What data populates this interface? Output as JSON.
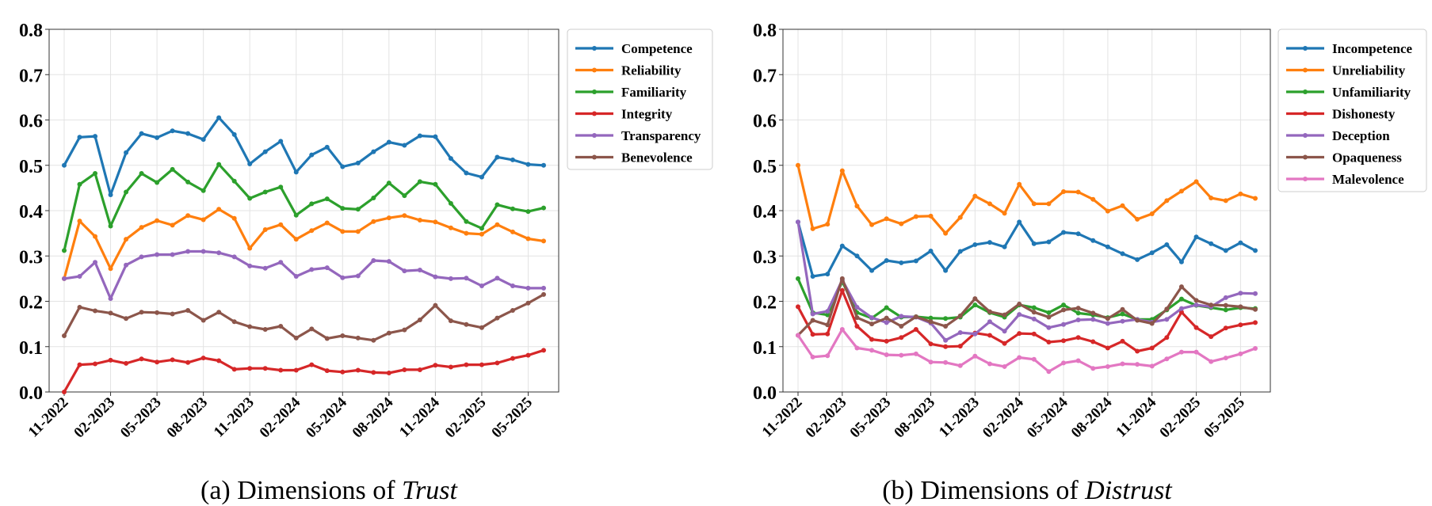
{
  "chart_data": [
    {
      "type": "line",
      "caption_prefix": "(a) Dimensions of ",
      "caption_emph": "Trust",
      "ylim": [
        0,
        0.8
      ],
      "yticks": [
        "0.0",
        "0.1",
        "0.2",
        "0.3",
        "0.4",
        "0.5",
        "0.6",
        "0.7",
        "0.8"
      ],
      "x_ticks": [
        "11-2022",
        "02-2023",
        "05-2023",
        "08-2023",
        "11-2023",
        "02-2024",
        "05-2024",
        "08-2024",
        "11-2024",
        "02-2025",
        "05-2025"
      ],
      "grid": true,
      "legend_position": "outside-right",
      "series": [
        {
          "name": "Competence",
          "color": "#1f77b4",
          "values": [
            0.5,
            0.562,
            0.564,
            0.435,
            0.528,
            0.57,
            0.561,
            0.576,
            0.57,
            0.557,
            0.605,
            0.568,
            0.503,
            0.53,
            0.553,
            0.485,
            0.523,
            0.54,
            0.497,
            0.505,
            0.53,
            0.551,
            0.544,
            0.565,
            0.563,
            0.515,
            0.483,
            0.474,
            0.518,
            0.512,
            0.502,
            0.5
          ]
        },
        {
          "name": "Reliability",
          "color": "#ff7f0e",
          "values": [
            0.25,
            0.377,
            0.343,
            0.272,
            0.337,
            0.363,
            0.378,
            0.368,
            0.389,
            0.38,
            0.403,
            0.383,
            0.317,
            0.358,
            0.369,
            0.337,
            0.356,
            0.373,
            0.354,
            0.354,
            0.376,
            0.384,
            0.389,
            0.379,
            0.375,
            0.362,
            0.35,
            0.348,
            0.369,
            0.353,
            0.338,
            0.333
          ]
        },
        {
          "name": "Familiarity",
          "color": "#2ca02c",
          "values": [
            0.312,
            0.458,
            0.482,
            0.366,
            0.441,
            0.482,
            0.462,
            0.491,
            0.463,
            0.444,
            0.502,
            0.465,
            0.427,
            0.441,
            0.452,
            0.39,
            0.415,
            0.426,
            0.405,
            0.403,
            0.428,
            0.461,
            0.433,
            0.464,
            0.458,
            0.416,
            0.376,
            0.361,
            0.413,
            0.404,
            0.398,
            0.406
          ]
        },
        {
          "name": "Integrity",
          "color": "#d62728",
          "values": [
            0.0,
            0.06,
            0.062,
            0.07,
            0.063,
            0.073,
            0.066,
            0.071,
            0.065,
            0.075,
            0.069,
            0.05,
            0.052,
            0.052,
            0.048,
            0.048,
            0.06,
            0.047,
            0.044,
            0.048,
            0.043,
            0.042,
            0.049,
            0.049,
            0.059,
            0.055,
            0.06,
            0.06,
            0.064,
            0.074,
            0.081,
            0.092
          ]
        },
        {
          "name": "Transparency",
          "color": "#9467bd",
          "values": [
            0.25,
            0.255,
            0.286,
            0.206,
            0.28,
            0.298,
            0.303,
            0.303,
            0.31,
            0.31,
            0.307,
            0.298,
            0.278,
            0.273,
            0.286,
            0.255,
            0.27,
            0.274,
            0.252,
            0.256,
            0.29,
            0.288,
            0.267,
            0.269,
            0.254,
            0.25,
            0.251,
            0.234,
            0.251,
            0.234,
            0.229,
            0.229
          ]
        },
        {
          "name": "Benevolence",
          "color": "#8c564b",
          "values": [
            0.124,
            0.187,
            0.179,
            0.174,
            0.162,
            0.176,
            0.175,
            0.172,
            0.18,
            0.158,
            0.176,
            0.155,
            0.144,
            0.138,
            0.145,
            0.119,
            0.139,
            0.118,
            0.124,
            0.119,
            0.114,
            0.13,
            0.137,
            0.159,
            0.191,
            0.157,
            0.149,
            0.142,
            0.163,
            0.18,
            0.196,
            0.215
          ]
        }
      ]
    },
    {
      "type": "line",
      "caption_prefix": "(b) Dimensions of ",
      "caption_emph": "Distrust",
      "ylim": [
        0,
        0.8
      ],
      "yticks": [
        "0.0",
        "0.1",
        "0.2",
        "0.3",
        "0.4",
        "0.5",
        "0.6",
        "0.7",
        "0.8"
      ],
      "x_ticks": [
        "11-2022",
        "02-2023",
        "05-2023",
        "08-2023",
        "11-2023",
        "02-2024",
        "05-2024",
        "08-2024",
        "11-2024",
        "02-2025",
        "05-2025"
      ],
      "grid": true,
      "legend_position": "outside-right",
      "series": [
        {
          "name": "Incompetence",
          "color": "#1f77b4",
          "values": [
            0.375,
            0.255,
            0.26,
            0.322,
            0.3,
            0.268,
            0.29,
            0.285,
            0.289,
            0.311,
            0.268,
            0.31,
            0.325,
            0.33,
            0.32,
            0.375,
            0.327,
            0.331,
            0.352,
            0.349,
            0.334,
            0.32,
            0.305,
            0.292,
            0.307,
            0.325,
            0.287,
            0.342,
            0.327,
            0.312,
            0.329,
            0.312
          ]
        },
        {
          "name": "Unreliability",
          "color": "#ff7f0e",
          "values": [
            0.5,
            0.36,
            0.37,
            0.488,
            0.41,
            0.369,
            0.382,
            0.371,
            0.387,
            0.388,
            0.35,
            0.385,
            0.432,
            0.415,
            0.394,
            0.458,
            0.415,
            0.415,
            0.442,
            0.441,
            0.425,
            0.399,
            0.411,
            0.381,
            0.393,
            0.422,
            0.443,
            0.464,
            0.428,
            0.422,
            0.437,
            0.427
          ]
        },
        {
          "name": "Unfamiliarity",
          "color": "#2ca02c",
          "values": [
            0.25,
            0.175,
            0.17,
            0.244,
            0.175,
            0.163,
            0.186,
            0.165,
            0.166,
            0.163,
            0.162,
            0.165,
            0.192,
            0.175,
            0.165,
            0.192,
            0.186,
            0.175,
            0.192,
            0.174,
            0.17,
            0.164,
            0.172,
            0.16,
            0.16,
            0.181,
            0.205,
            0.191,
            0.186,
            0.181,
            0.186,
            0.184
          ]
        },
        {
          "name": "Dishonesty",
          "color": "#d62728",
          "values": [
            0.188,
            0.127,
            0.128,
            0.224,
            0.145,
            0.116,
            0.112,
            0.12,
            0.138,
            0.106,
            0.1,
            0.101,
            0.13,
            0.125,
            0.107,
            0.129,
            0.128,
            0.11,
            0.113,
            0.12,
            0.111,
            0.097,
            0.112,
            0.09,
            0.097,
            0.12,
            0.176,
            0.142,
            0.122,
            0.141,
            0.148,
            0.153
          ]
        },
        {
          "name": "Deception",
          "color": "#9467bd",
          "values": [
            0.375,
            0.172,
            0.178,
            0.247,
            0.187,
            0.164,
            0.153,
            0.167,
            0.165,
            0.152,
            0.114,
            0.131,
            0.128,
            0.155,
            0.134,
            0.171,
            0.161,
            0.142,
            0.149,
            0.159,
            0.16,
            0.151,
            0.156,
            0.16,
            0.154,
            0.16,
            0.184,
            0.192,
            0.188,
            0.208,
            0.218,
            0.217
          ]
        },
        {
          "name": "Opaqueness",
          "color": "#8c564b",
          "values": [
            0.125,
            0.158,
            0.148,
            0.25,
            0.164,
            0.15,
            0.163,
            0.145,
            0.166,
            0.155,
            0.145,
            0.168,
            0.206,
            0.177,
            0.17,
            0.194,
            0.176,
            0.165,
            0.181,
            0.185,
            0.174,
            0.162,
            0.182,
            0.158,
            0.151,
            0.183,
            0.232,
            0.202,
            0.192,
            0.191,
            0.188,
            0.182
          ]
        },
        {
          "name": "Malevolence",
          "color": "#e377c2",
          "values": [
            0.125,
            0.077,
            0.08,
            0.138,
            0.097,
            0.092,
            0.082,
            0.081,
            0.084,
            0.066,
            0.065,
            0.058,
            0.079,
            0.062,
            0.056,
            0.076,
            0.072,
            0.045,
            0.064,
            0.069,
            0.052,
            0.056,
            0.062,
            0.061,
            0.057,
            0.073,
            0.088,
            0.088,
            0.067,
            0.075,
            0.084,
            0.096
          ]
        }
      ]
    }
  ]
}
